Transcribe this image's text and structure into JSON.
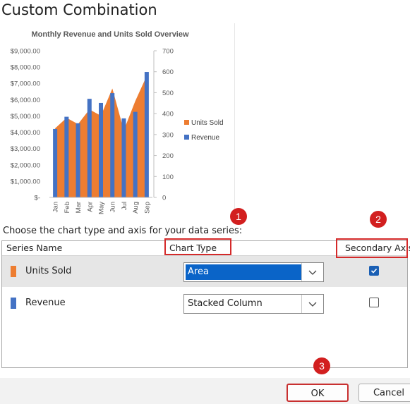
{
  "dialog": {
    "title": "Custom Combination"
  },
  "chart_data": {
    "type": "bar",
    "title": "Monthly Revenue and Units Sold Overview",
    "categories": [
      "Jan",
      "Feb",
      "Mar",
      "Apr",
      "May",
      "Jun",
      "Jul",
      "Aug",
      "Sep"
    ],
    "series": [
      {
        "name": "Revenue",
        "chart": "Stacked Column",
        "axis": "primary",
        "color": "#4472c4",
        "values": [
          4200,
          4950,
          4550,
          6050,
          5800,
          6400,
          4850,
          5250,
          7700
        ]
      },
      {
        "name": "Units Sold",
        "chart": "Area",
        "axis": "secondary",
        "color": "#ed7d31",
        "values": [
          330,
          380,
          350,
          420,
          390,
          520,
          320,
          460,
          580
        ]
      }
    ],
    "y_left": {
      "min": 0,
      "max": 9000,
      "ticks": [
        "$9,000.00",
        "$8,000.00",
        "$7,000.00",
        "$6,000.00",
        "$5,000.00",
        "$4,000.00",
        "$3,000.00",
        "$2,000.00",
        "$1,000.00",
        "$-"
      ]
    },
    "y_right": {
      "min": 0,
      "max": 700,
      "ticks": [
        "700",
        "600",
        "500",
        "400",
        "300",
        "200",
        "100",
        "0"
      ]
    },
    "legend": {
      "placement": "right",
      "entries": [
        "Units Sold",
        "Revenue"
      ]
    }
  },
  "instructions": "Choose the chart type and axis for your data series:",
  "table": {
    "headers": {
      "name": "Series Name",
      "type": "Chart Type",
      "axis": "Secondary Axis"
    },
    "rows": [
      {
        "name": "Units Sold",
        "color": "#ed7d31",
        "chart_type": "Area",
        "secondary": true
      },
      {
        "name": "Revenue",
        "color": "#4472c4",
        "chart_type": "Stacked Column",
        "secondary": false
      }
    ]
  },
  "callouts": [
    "1",
    "2",
    "3"
  ],
  "buttons": {
    "ok": "OK",
    "cancel": "Cancel"
  }
}
